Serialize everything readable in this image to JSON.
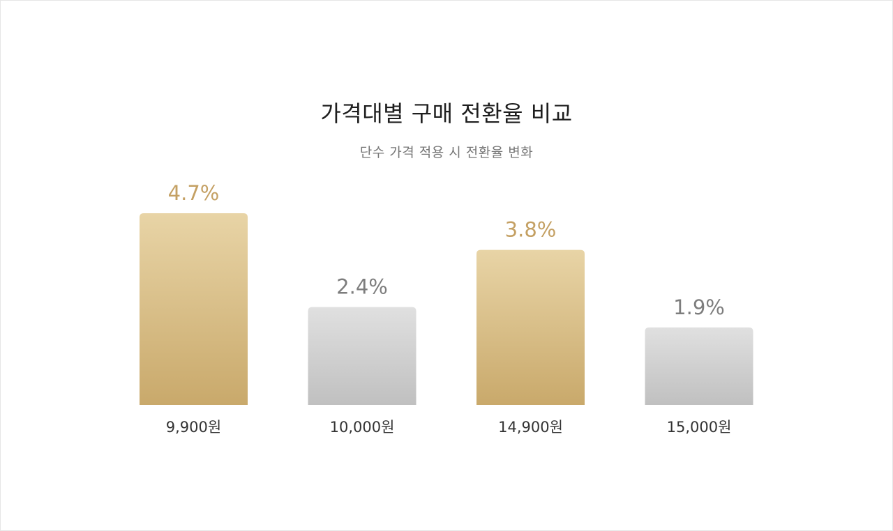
{
  "chart_data": {
    "type": "bar",
    "title": "가격대별 구매 전환율 비교",
    "subtitle": "단수 가격 적용 시 전환율 변화",
    "categories": [
      "9,900원",
      "10,000원",
      "14,900원",
      "15,000원"
    ],
    "values": [
      4.7,
      2.4,
      3.8,
      1.9
    ],
    "value_labels": [
      "4.7%",
      "2.4%",
      "3.8%",
      "1.9%"
    ],
    "highlight": [
      true,
      false,
      true,
      false
    ],
    "xlabel": "",
    "ylabel": "",
    "ylim": [
      0,
      4.7
    ],
    "grid": false,
    "colors": {
      "highlight_top": "#e8d4a6",
      "highlight_bottom": "#c9a96b",
      "highlight_label": "#c4a063",
      "normal_top": "#e0e0e0",
      "normal_bottom": "#c0c0c0",
      "normal_label": "#7d7d7d"
    }
  }
}
